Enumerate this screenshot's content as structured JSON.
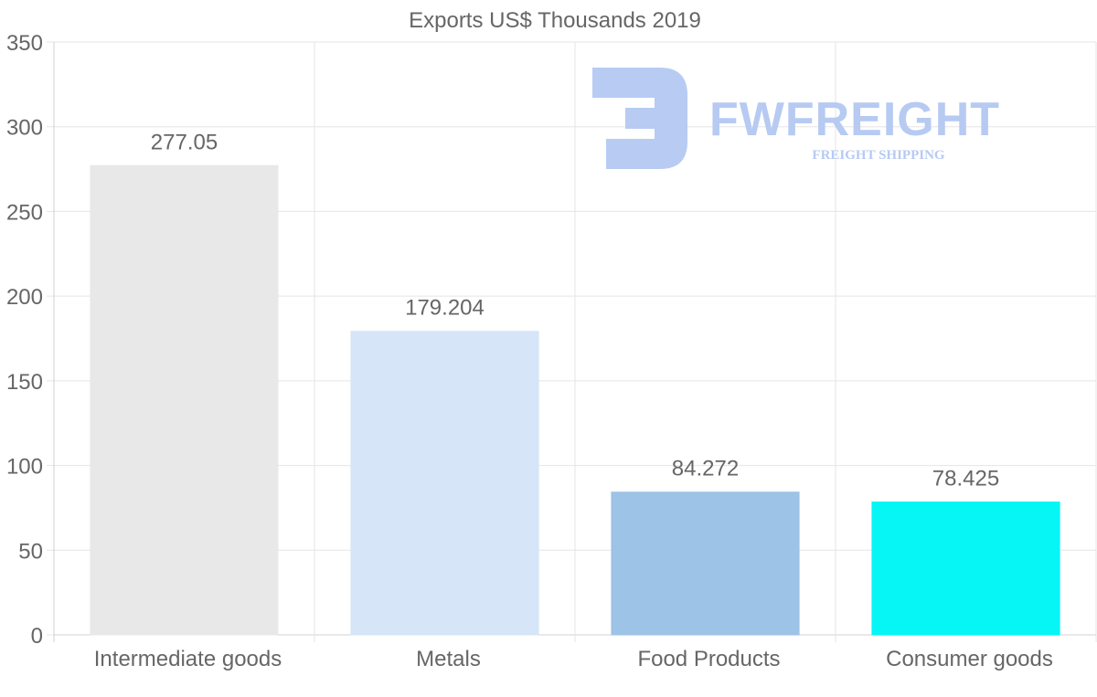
{
  "chart_data": {
    "type": "bar",
    "title": "Exports US$ Thousands 2019",
    "categories": [
      "Intermediate goods",
      "Metals",
      "Food Products",
      "Consumer goods"
    ],
    "values": [
      277.05,
      179.204,
      84.272,
      78.425
    ],
    "value_labels": [
      "277.05",
      "179.204",
      "84.272",
      "78.425"
    ],
    "colors": [
      "#e8e8e8",
      "#d6e6f8",
      "#9dc3e6",
      "#06f6f6"
    ],
    "ylim": [
      0,
      350
    ],
    "yticks": [
      0,
      50,
      100,
      150,
      200,
      250,
      300,
      350
    ],
    "xlabel": "",
    "ylabel": "",
    "grid": true
  },
  "watermark": {
    "brand": "FWFREIGHT",
    "tagline": "FREIGHT SHIPPING"
  }
}
